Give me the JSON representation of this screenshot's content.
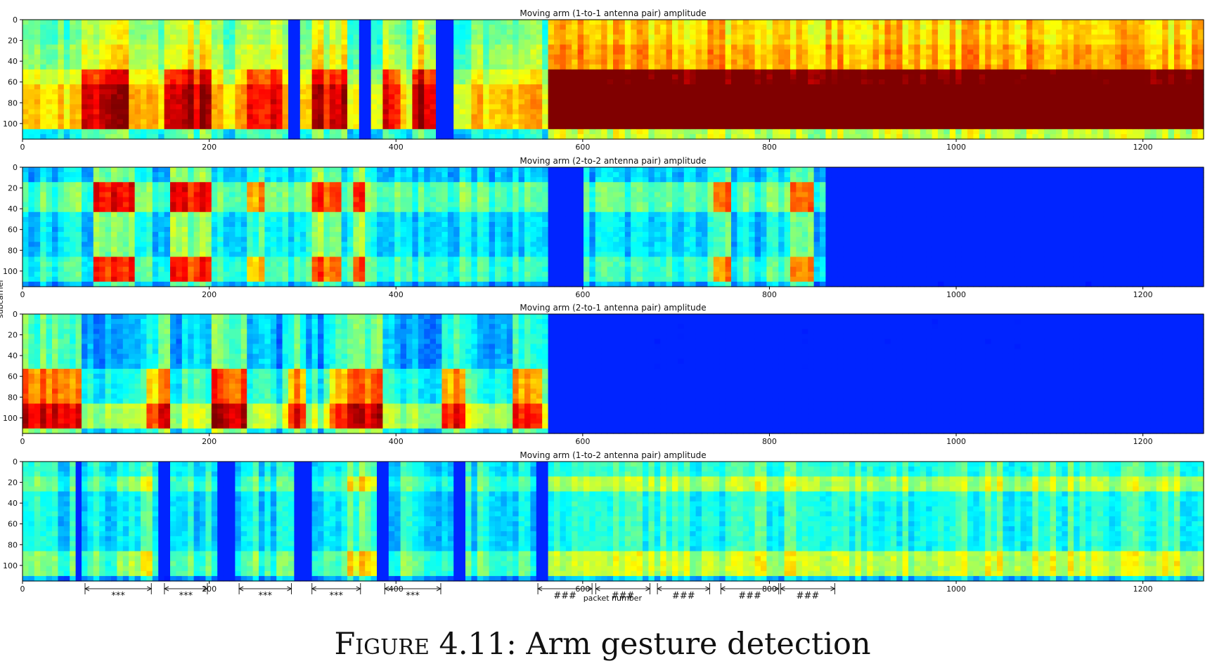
{
  "chart_data": [
    {
      "type": "heatmap",
      "title": "Moving arm (1-to-1 antenna pair) amplitude",
      "xlim": [
        0,
        1265
      ],
      "ylim": [
        115,
        0
      ],
      "xticks": [
        "0",
        "200",
        "400",
        "600",
        "800",
        "1000",
        "1200"
      ],
      "yticks": [
        "0",
        "20",
        "40",
        "60",
        "80",
        "100"
      ],
      "colormap": "jet",
      "base_level": 0.46,
      "bands": [
        {
          "y": [
            0,
            22
          ],
          "level": 0.0
        },
        {
          "y": [
            22,
            48
          ],
          "level": 0.04
        },
        {
          "y": [
            48,
            62
          ],
          "level": 0.12
        },
        {
          "y": [
            62,
            105
          ],
          "level": 0.2
        },
        {
          "y": [
            105,
            115
          ],
          "level": -0.1
        }
      ],
      "events": [
        {
          "x": [
            65,
            115
          ],
          "peak": 0.28
        },
        {
          "x": [
            150,
            205
          ],
          "peak": 0.28
        },
        {
          "x": [
            240,
            280
          ],
          "peak": 0.22
        },
        {
          "x": [
            310,
            345
          ],
          "peak": 0.25
        },
        {
          "x": [
            385,
            405
          ],
          "peak": 0.25
        },
        {
          "x": [
            415,
            450
          ],
          "peak": 0.3
        },
        {
          "x": [
            565,
            1265
          ],
          "peak": 0.46
        }
      ],
      "dark_columns": [
        [
          445,
          460
        ],
        [
          360,
          375
        ],
        [
          285,
          300
        ]
      ]
    },
    {
      "type": "heatmap",
      "title": "Moving arm (2-to-2 antenna pair) amplitude",
      "xlim": [
        0,
        1265
      ],
      "ylim": [
        115,
        0
      ],
      "xticks": [
        "0",
        "200",
        "400",
        "600",
        "800",
        "1000",
        "1200"
      ],
      "yticks": [
        "0",
        "20",
        "40",
        "60",
        "80",
        "100"
      ],
      "colormap": "jet",
      "base_level": 0.34,
      "bands": [
        {
          "y": [
            0,
            15
          ],
          "level": -0.02
        },
        {
          "y": [
            15,
            45
          ],
          "level": 0.12
        },
        {
          "y": [
            45,
            85
          ],
          "level": 0.0
        },
        {
          "y": [
            85,
            108
          ],
          "level": 0.08
        },
        {
          "y": [
            108,
            115
          ],
          "level": -0.06
        }
      ],
      "events": [
        {
          "x": [
            75,
            120
          ],
          "peak": 0.45
        },
        {
          "x": [
            160,
            200
          ],
          "peak": 0.42
        },
        {
          "x": [
            240,
            260
          ],
          "peak": 0.3
        },
        {
          "x": [
            310,
            340
          ],
          "peak": 0.35
        },
        {
          "x": [
            355,
            370
          ],
          "peak": 0.35
        },
        {
          "x": [
            740,
            760
          ],
          "peak": 0.35
        },
        {
          "x": [
            820,
            850
          ],
          "peak": 0.3
        }
      ],
      "dark_columns": [
        [
          565,
          600
        ],
        [
          860,
          1265
        ]
      ]
    },
    {
      "type": "heatmap",
      "title": "Moving arm (2-to-1 antenna pair) amplitude",
      "xlim": [
        0,
        1265
      ],
      "ylim": [
        115,
        0
      ],
      "xticks": [
        "0",
        "200",
        "400",
        "600",
        "800",
        "1000",
        "1200"
      ],
      "yticks": [
        "0",
        "20",
        "40",
        "60",
        "80",
        "100"
      ],
      "colormap": "jet",
      "base_level": 0.3,
      "bands": [
        {
          "y": [
            0,
            55
          ],
          "level": 0.0
        },
        {
          "y": [
            55,
            85
          ],
          "level": 0.1
        },
        {
          "y": [
            85,
            112
          ],
          "level": 0.25
        },
        {
          "y": [
            112,
            115
          ],
          "level": 0.05
        }
      ],
      "events": [
        {
          "x": [
            0,
            65
          ],
          "peak": 0.35
        },
        {
          "x": [
            130,
            155
          ],
          "peak": 0.3
        },
        {
          "x": [
            205,
            240
          ],
          "peak": 0.4
        },
        {
          "x": [
            285,
            305
          ],
          "peak": 0.3
        },
        {
          "x": [
            330,
            345
          ],
          "peak": 0.25
        },
        {
          "x": [
            350,
            385
          ],
          "peak": 0.35
        },
        {
          "x": [
            450,
            475
          ],
          "peak": 0.35
        },
        {
          "x": [
            525,
            555
          ],
          "peak": 0.35
        }
      ],
      "dark_columns": [
        [
          560,
          1265
        ]
      ]
    },
    {
      "type": "heatmap",
      "title": "Moving arm (1-to-2 antenna pair) amplitude",
      "xlim": [
        0,
        1265
      ],
      "ylim": [
        115,
        0
      ],
      "xticks": [
        "0",
        "200",
        "400",
        "600",
        "800",
        "1000",
        "1200"
      ],
      "yticks": [
        "0",
        "20",
        "40",
        "60",
        "80",
        "100"
      ],
      "xlabel": "packet number",
      "colormap": "jet",
      "base_level": 0.36,
      "bands": [
        {
          "y": [
            0,
            12
          ],
          "level": 0.02
        },
        {
          "y": [
            12,
            30
          ],
          "level": 0.08
        },
        {
          "y": [
            30,
            85
          ],
          "level": 0.0
        },
        {
          "y": [
            85,
            110
          ],
          "level": 0.1
        },
        {
          "y": [
            110,
            115
          ],
          "level": -0.08
        }
      ],
      "events": [
        {
          "x": [
            100,
            140
          ],
          "peak": 0.12
        },
        {
          "x": [
            350,
            380
          ],
          "peak": 0.18
        },
        {
          "x": [
            560,
            1265
          ],
          "peak": 0.12
        }
      ],
      "dark_columns": [
        [
          55,
          65
        ],
        [
          145,
          155
        ],
        [
          210,
          230
        ],
        [
          290,
          310
        ],
        [
          380,
          390
        ],
        [
          460,
          475
        ],
        [
          550,
          560
        ]
      ],
      "gesture_markers": [
        {
          "label": "***",
          "x": [
            67,
            138
          ]
        },
        {
          "label": "***",
          "x": [
            152,
            198
          ]
        },
        {
          "label": "***",
          "x": [
            232,
            288
          ]
        },
        {
          "label": "***",
          "x": [
            310,
            362
          ]
        },
        {
          "label": "***",
          "x": [
            388,
            448
          ]
        },
        {
          "label": "###",
          "x": [
            552,
            610
          ]
        },
        {
          "label": "###",
          "x": [
            614,
            672
          ]
        },
        {
          "label": "###",
          "x": [
            680,
            736
          ]
        },
        {
          "label": "###",
          "x": [
            748,
            810
          ]
        },
        {
          "label": "###",
          "x": [
            812,
            870
          ]
        }
      ]
    }
  ],
  "shared_ylabel": "subcarrier",
  "caption": {
    "small_caps": "Figure",
    "rest": " 4.11: Arm gesture detection"
  }
}
